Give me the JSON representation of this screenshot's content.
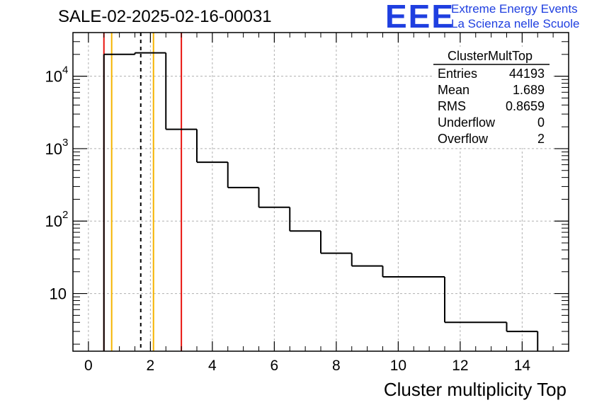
{
  "header": {
    "title": "SALE-02-2025-02-16-00031",
    "logo_text": "EEE",
    "logo_line1": "Extreme Energy Events",
    "logo_line2": "La Scienza nelle Scuole",
    "logo_color": "#1f3fe0"
  },
  "stats": {
    "name": "ClusterMultTop",
    "rows": [
      {
        "label": "Entries",
        "value": "44193"
      },
      {
        "label": "Mean",
        "value": "1.689"
      },
      {
        "label": "RMS",
        "value": "0.8659"
      },
      {
        "label": "Underflow",
        "value": "0"
      },
      {
        "label": "Overflow",
        "value": "2"
      }
    ]
  },
  "chart_data": {
    "type": "histogram",
    "title": "SALE-02-2025-02-16-00031",
    "xlabel": "Cluster multiplicity Top",
    "ylabel": "",
    "xlim": [
      -0.5,
      15.5
    ],
    "ylim_log": [
      1.6,
      40000
    ],
    "yscale": "log",
    "grid": true,
    "x_ticks": [
      0,
      2,
      4,
      6,
      8,
      10,
      12,
      14
    ],
    "x_tick_labels": [
      "0",
      "2",
      "4",
      "6",
      "8",
      "10",
      "12",
      "14"
    ],
    "y_ticks": [
      {
        "value": 10,
        "base": "10",
        "exp": ""
      },
      {
        "value": 100,
        "base": "10",
        "exp": "2"
      },
      {
        "value": 1000,
        "base": "10",
        "exp": "3"
      },
      {
        "value": 10000,
        "base": "10",
        "exp": "4"
      }
    ],
    "bins": [
      {
        "low": 0.5,
        "high": 1.5,
        "count": 20000
      },
      {
        "low": 1.5,
        "high": 2.5,
        "count": 21000
      },
      {
        "low": 2.5,
        "high": 3.5,
        "count": 1850
      },
      {
        "low": 3.5,
        "high": 4.5,
        "count": 650
      },
      {
        "low": 4.5,
        "high": 5.5,
        "count": 290
      },
      {
        "low": 5.5,
        "high": 6.5,
        "count": 155
      },
      {
        "low": 6.5,
        "high": 7.5,
        "count": 73
      },
      {
        "low": 7.5,
        "high": 8.5,
        "count": 36
      },
      {
        "low": 8.5,
        "high": 9.5,
        "count": 24
      },
      {
        "low": 9.5,
        "high": 11.5,
        "count": 17
      },
      {
        "low": 11.5,
        "high": 13.5,
        "count": 4
      },
      {
        "low": 13.5,
        "high": 14.5,
        "count": 3
      }
    ],
    "vertical_lines": [
      {
        "x": 0.5,
        "color": "#e8140f",
        "style": "solid"
      },
      {
        "x": 0.75,
        "color": "#f5b400",
        "style": "solid"
      },
      {
        "x": 1.689,
        "color": "#000000",
        "style": "dashed"
      },
      {
        "x": 2.1,
        "color": "#f5b400",
        "style": "solid"
      },
      {
        "x": 3.0,
        "color": "#e8140f",
        "style": "solid"
      }
    ]
  }
}
